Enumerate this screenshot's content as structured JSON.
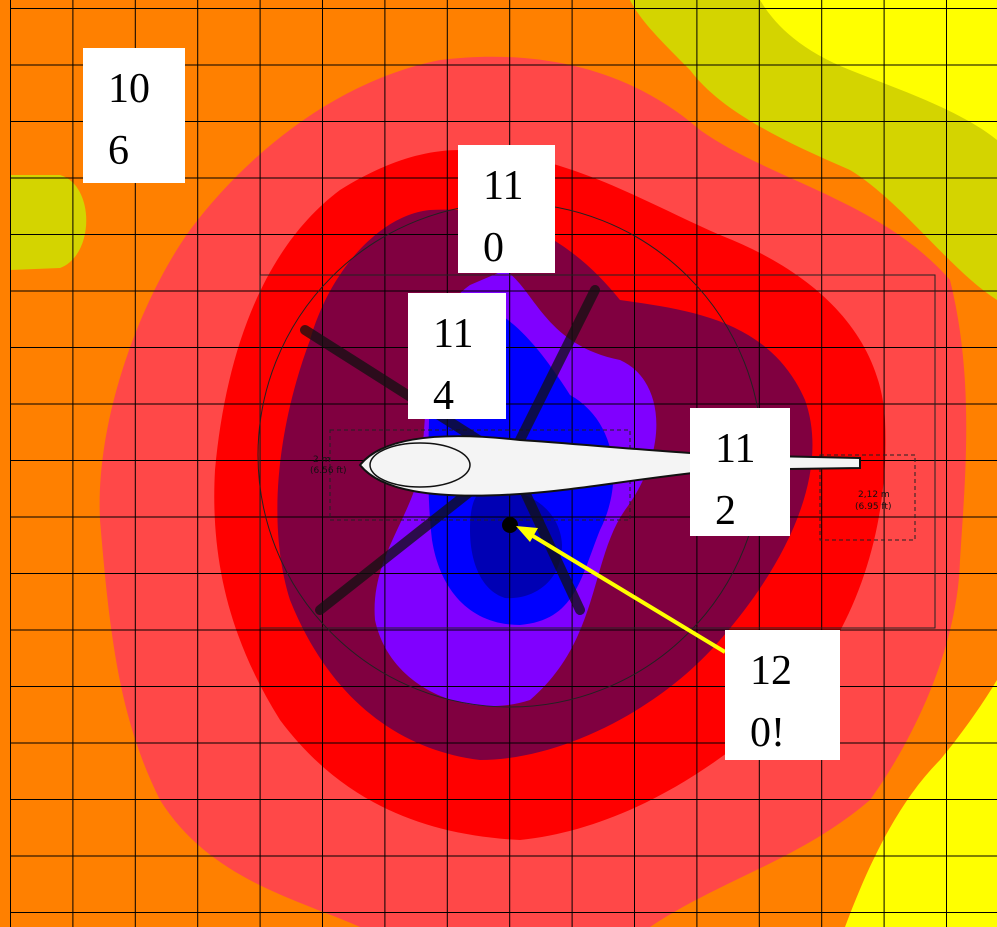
{
  "labels": [
    "106",
    "110",
    "114",
    "112",
    "120!"
  ],
  "dimensions": [
    {
      "metric": "2 m",
      "imperial": "(6.56 ft)"
    },
    {
      "metric": "2,12 m",
      "imperial": "(6.95 ft)"
    }
  ]
}
